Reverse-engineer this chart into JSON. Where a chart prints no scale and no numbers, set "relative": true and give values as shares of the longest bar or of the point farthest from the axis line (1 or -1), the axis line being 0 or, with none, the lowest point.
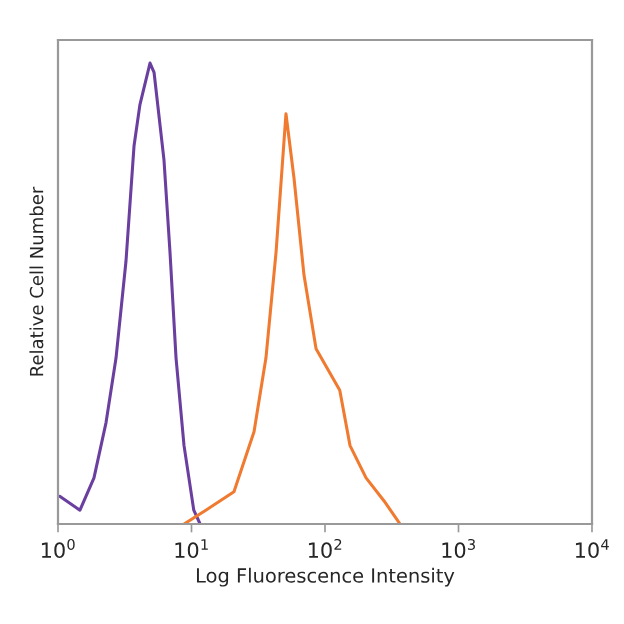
{
  "chart_data": {
    "type": "line",
    "xlabel": "Log Fluorescence Intensity",
    "ylabel": "Relative Cell Number",
    "relative": true,
    "log": "x",
    "xlim": [
      1,
      10000
    ],
    "xticks": [
      {
        "value": 1,
        "label": "10$^{0}$"
      },
      {
        "value": 10,
        "label": "10$^{1}$"
      },
      {
        "value": 100,
        "label": "10$^{2}$"
      },
      {
        "value": 1000,
        "label": "10$^{3}$"
      },
      {
        "value": 10000,
        "label": "10$^{4}$"
      }
    ],
    "tick_labels": "x",
    "grid": false,
    "legend": false,
    "series": [
      {
        "color": "#6a3fa0",
        "x": [
          1.03,
          1.46,
          1.86,
          2.29,
          2.72,
          3.23,
          3.71,
          4.11,
          4.89,
          5.24,
          6.22,
          6.9,
          7.66,
          8.79,
          10.4,
          11.6
        ],
        "values": [
          0.06,
          0.03,
          0.1,
          0.22,
          0.36,
          0.57,
          0.82,
          0.91,
          1,
          0.98,
          0.79,
          0.59,
          0.36,
          0.17,
          0.03,
          0
        ]
      },
      {
        "color": "#f07a30",
        "x": [
          8.8,
          12.8,
          20.8,
          29.4,
          36.1,
          43.0,
          51.0,
          58.6,
          69.6,
          85.7,
          129,
          154,
          203,
          277,
          365
        ],
        "values": [
          0,
          0.03,
          0.07,
          0.2,
          0.36,
          0.59,
          0.89,
          0.75,
          0.54,
          0.38,
          0.29,
          0.17,
          0.1,
          0.05,
          0
        ]
      }
    ]
  }
}
